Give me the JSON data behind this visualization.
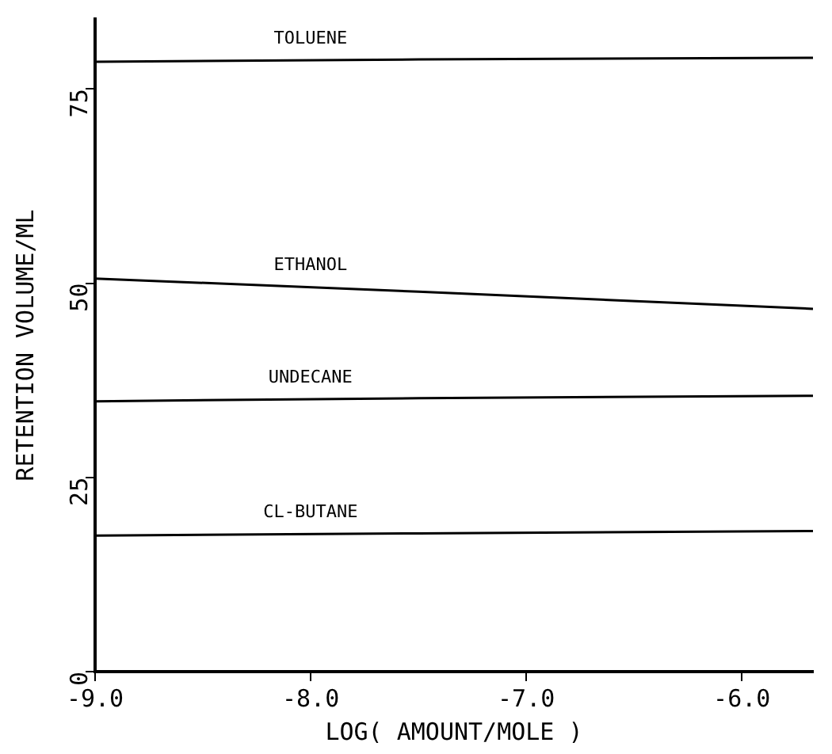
{
  "chart_data": {
    "type": "line",
    "xlabel": "LOG( AMOUNT/MOLE )",
    "ylabel": "RETENTION VOLUME/ML",
    "series": [
      {
        "name": "TOLUENE",
        "color": "#000000",
        "x": [
          -9.0,
          -7.5,
          -5.67
        ],
        "values": [
          78.5,
          78.8,
          79.0
        ]
      },
      {
        "name": "ETHANOL",
        "color": "#000000",
        "x": [
          -9.0,
          -7.5,
          -5.67
        ],
        "values": [
          50.6,
          48.9,
          46.7
        ]
      },
      {
        "name": "UNDECANE",
        "color": "#000000",
        "x": [
          -9.0,
          -7.5,
          -5.67
        ],
        "values": [
          34.8,
          35.2,
          35.5
        ]
      },
      {
        "name": "CL-BUTANE",
        "color": "#000000",
        "x": [
          -9.0,
          -7.5,
          -5.67
        ],
        "values": [
          17.5,
          17.8,
          18.1
        ]
      }
    ],
    "xlim": [
      -9.0,
      -5.67
    ],
    "xticks": [
      {
        "value": -9,
        "label": "-9.0"
      },
      {
        "value": -8,
        "label": "-8.0"
      },
      {
        "value": -7,
        "label": "-7.0"
      },
      {
        "value": -6,
        "label": "-6.0"
      }
    ],
    "ylim": [
      0,
      84
    ],
    "yticks": [
      0,
      25,
      50,
      75
    ],
    "grid": false,
    "legend": false,
    "marker": "none",
    "line_style": "solid"
  }
}
